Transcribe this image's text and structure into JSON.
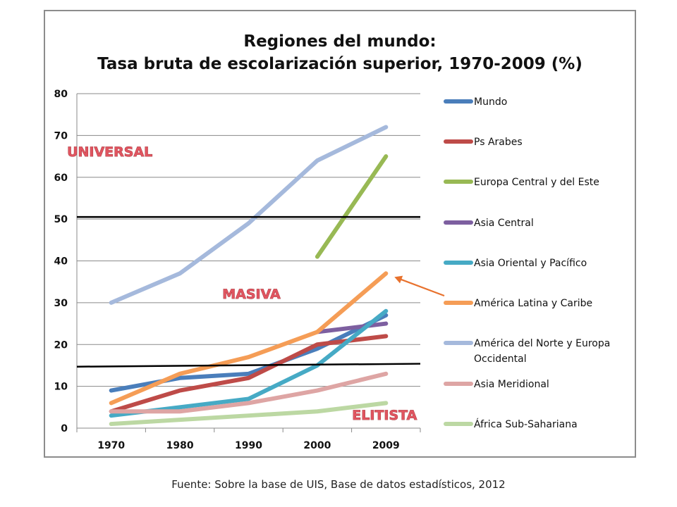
{
  "chart_data": {
    "type": "line",
    "title": "Regiones del mundo:",
    "subtitle": "Tasa bruta de escolarización superior, 1970-2009 (%)",
    "xlabel": "",
    "ylabel": "",
    "categories": [
      "1970",
      "1980",
      "1990",
      "2000",
      "2009"
    ],
    "ylim": [
      0,
      80
    ],
    "yticks": [
      0,
      10,
      20,
      30,
      40,
      50,
      60,
      70,
      80
    ],
    "grid": "horizontal",
    "legend_position": "right",
    "series": [
      {
        "name": "Mundo",
        "color": "#4a7ebb",
        "values": [
          9,
          12,
          13,
          19,
          27
        ]
      },
      {
        "name": "Ps Arabes",
        "color": "#be4b48",
        "values": [
          4,
          9,
          12,
          20,
          22
        ]
      },
      {
        "name": "Europa Central y del Este",
        "color": "#98b954",
        "values": [
          null,
          null,
          null,
          41,
          65
        ]
      },
      {
        "name": "Asia Central",
        "color": "#7d5fa0",
        "values": [
          null,
          null,
          null,
          23,
          25
        ]
      },
      {
        "name": "Asia Oriental y Pacífico",
        "color": "#46aac5",
        "values": [
          3,
          5,
          7,
          15,
          28
        ]
      },
      {
        "name": "América Latina y Caribe",
        "color": "#f59d56",
        "values": [
          6,
          13,
          17,
          23,
          37
        ]
      },
      {
        "name": "América del Norte y Europa Occidental",
        "color": "#a5b9dc",
        "values": [
          30,
          37,
          49,
          64,
          72
        ]
      },
      {
        "name": "Asia Meridional",
        "color": "#dea5a4",
        "values": [
          4,
          4,
          6,
          9,
          13
        ]
      },
      {
        "name": "África Sub-Sahariana",
        "color": "#bcd8a3",
        "values": [
          1,
          2,
          3,
          4,
          6
        ]
      }
    ],
    "reference_lines": [
      {
        "from": 50.5,
        "to": 50.5,
        "color": "#000000"
      },
      {
        "from": 14.7,
        "to": 15.4,
        "color": "#000000"
      }
    ],
    "annotations": [
      {
        "text": "UNIVERSAL",
        "x": "1970",
        "y": 65
      },
      {
        "text": "MASIVA",
        "x": "1990",
        "y": 31
      },
      {
        "text": "ELITISTA",
        "x": "2009",
        "y": 2
      }
    ],
    "arrow": {
      "target": {
        "x": "2009",
        "y": 37
      },
      "color": "#e8722e"
    }
  },
  "source_note": "Fuente: Sobre la base de UIS, Base de datos estadísticos, 2012"
}
